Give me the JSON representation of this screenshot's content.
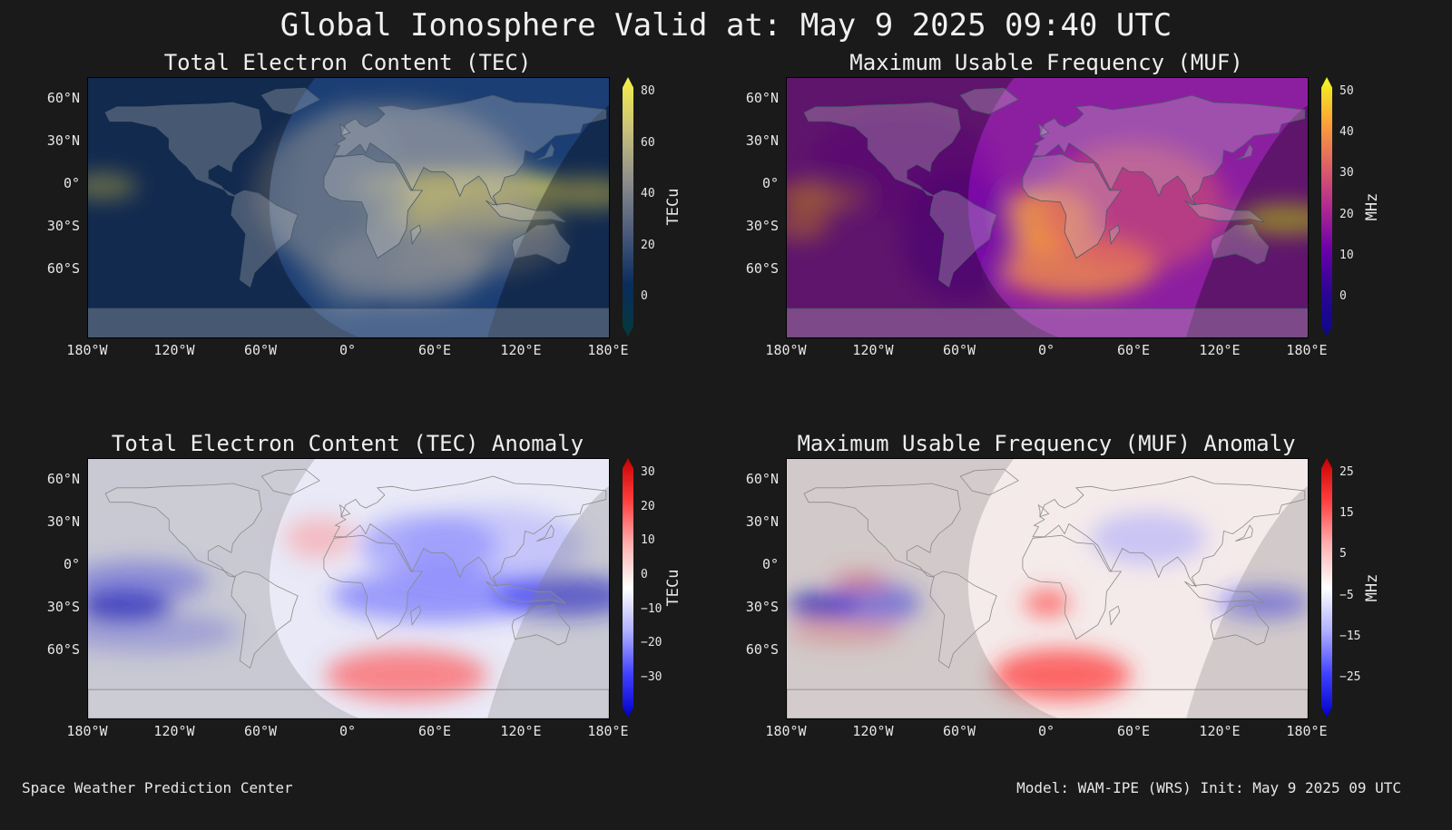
{
  "title": "Global Ionosphere Valid at: May 9 2025 09:40 UTC",
  "lat_ticks": [
    "60°N",
    "30°N",
    "0°",
    "30°S",
    "60°S"
  ],
  "lon_ticks": [
    "180°W",
    "120°W",
    "60°W",
    "0°",
    "60°E",
    "120°E",
    "180°E"
  ],
  "panels": [
    {
      "id": "tec",
      "title": "Total Electron Content (TEC)",
      "colorbar": {
        "label": "TECu",
        "ticks": [
          "80",
          "60",
          "40",
          "20",
          "0"
        ],
        "range": [
          0,
          80
        ],
        "colors": [
          "#f5ef4a",
          "#c9c27a",
          "#8d8d8d",
          "#4a5a7a",
          "#0a2c5c",
          "#033a3a"
        ]
      },
      "base_color": "#1b3e74",
      "enhancement_color": "#e8dc6a",
      "night_shading": true
    },
    {
      "id": "muf",
      "title": "Maximum Usable Frequency (MUF)",
      "colorbar": {
        "label": "MHz",
        "ticks": [
          "50",
          "40",
          "30",
          "20",
          "10",
          "0"
        ],
        "range": [
          0,
          50
        ],
        "colors": [
          "#f0f921",
          "#fca636",
          "#e16462",
          "#b12a90",
          "#6a00a8",
          "#2a0593",
          "#0d0887"
        ]
      },
      "base_color": "#8c1fa0",
      "enhancement_color": "#fca636",
      "night_shading": true
    },
    {
      "id": "tec-anomaly",
      "title": "Total Electron Content (TEC) Anomaly",
      "colorbar": {
        "label": "TECu",
        "ticks": [
          "30",
          "20",
          "10",
          "0",
          "−10",
          "−20",
          "−30"
        ],
        "range": [
          -30,
          30
        ],
        "colors": [
          "#c80000",
          "#ff4040",
          "#ffb0b0",
          "#ffffff",
          "#b0b0ff",
          "#4040ff",
          "#0000c8"
        ]
      },
      "base_color": "#e9e9f7",
      "night_shading": true
    },
    {
      "id": "muf-anomaly",
      "title": "Maximum Usable Frequency (MUF) Anomaly",
      "colorbar": {
        "label": "MHz",
        "ticks": [
          "25",
          "15",
          "5",
          "−5",
          "−15",
          "−25"
        ],
        "range": [
          -25,
          25
        ],
        "colors": [
          "#c80000",
          "#ff4040",
          "#ffb0b0",
          "#ffffff",
          "#b0b0ff",
          "#4040ff",
          "#0000c8"
        ]
      },
      "base_color": "#f5eaea",
      "night_shading": true
    }
  ],
  "footer": {
    "left": "Space Weather Prediction Center",
    "right": "Model: WAM-IPE (WRS) Init: May 9 2025 09 UTC"
  }
}
